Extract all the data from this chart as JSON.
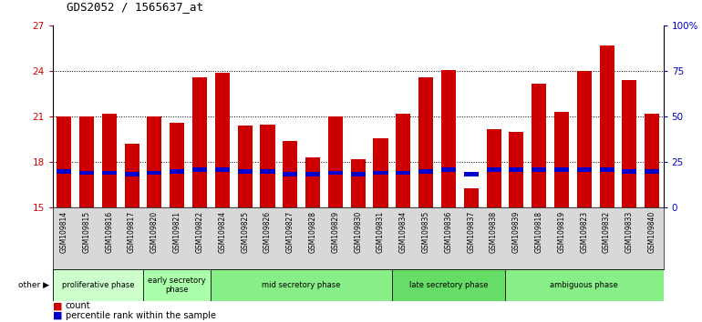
{
  "title": "GDS2052 / 1565637_at",
  "samples": [
    "GSM109814",
    "GSM109815",
    "GSM109816",
    "GSM109817",
    "GSM109820",
    "GSM109821",
    "GSM109822",
    "GSM109824",
    "GSM109825",
    "GSM109826",
    "GSM109827",
    "GSM109828",
    "GSM109829",
    "GSM109830",
    "GSM109831",
    "GSM109834",
    "GSM109835",
    "GSM109836",
    "GSM109837",
    "GSM109838",
    "GSM109839",
    "GSM109818",
    "GSM109819",
    "GSM109823",
    "GSM109832",
    "GSM109833",
    "GSM109840"
  ],
  "count_values": [
    21.0,
    21.0,
    21.2,
    19.2,
    21.0,
    20.6,
    23.6,
    23.9,
    20.4,
    20.5,
    19.4,
    18.3,
    21.0,
    18.2,
    19.6,
    21.2,
    23.6,
    24.1,
    16.3,
    20.2,
    20.0,
    23.2,
    21.3,
    24.0,
    25.7,
    23.4,
    21.2
  ],
  "percentile_values": [
    17.4,
    17.3,
    17.3,
    17.2,
    17.3,
    17.4,
    17.5,
    17.5,
    17.4,
    17.4,
    17.2,
    17.2,
    17.3,
    17.2,
    17.3,
    17.3,
    17.4,
    17.5,
    17.2,
    17.5,
    17.5,
    17.5,
    17.5,
    17.5,
    17.5,
    17.4,
    17.4
  ],
  "ylim_left": [
    15,
    27
  ],
  "ylim_right": [
    0,
    100
  ],
  "yticks_left": [
    15,
    18,
    21,
    24,
    27
  ],
  "yticks_right": [
    0,
    25,
    50,
    75,
    100
  ],
  "bar_color": "#CC0000",
  "percentile_color": "#0000CC",
  "bar_width": 0.65,
  "phases": [
    {
      "label": "proliferative phase",
      "start": 0,
      "end": 3,
      "color": "#ccffcc"
    },
    {
      "label": "early secretory\nphase",
      "start": 4,
      "end": 6,
      "color": "#aaffaa"
    },
    {
      "label": "mid secretory phase",
      "start": 7,
      "end": 14,
      "color": "#88ee88"
    },
    {
      "label": "late secretory phase",
      "start": 15,
      "end": 19,
      "color": "#66dd66"
    },
    {
      "label": "ambiguous phase",
      "start": 20,
      "end": 26,
      "color": "#88ee88"
    }
  ],
  "background_color": "#ffffff",
  "plot_bg_color": "#ffffff",
  "axis_label_color_left": "#CC0000",
  "axis_label_color_right": "#0000CC",
  "title_color": "#000000",
  "legend_items": [
    "count",
    "percentile rank within the sample"
  ],
  "legend_colors": [
    "#CC0000",
    "#0000CC"
  ],
  "grid_lines": [
    18,
    21,
    24
  ],
  "xtick_bg": "#d8d8d8",
  "phase_border_color": "#000000"
}
